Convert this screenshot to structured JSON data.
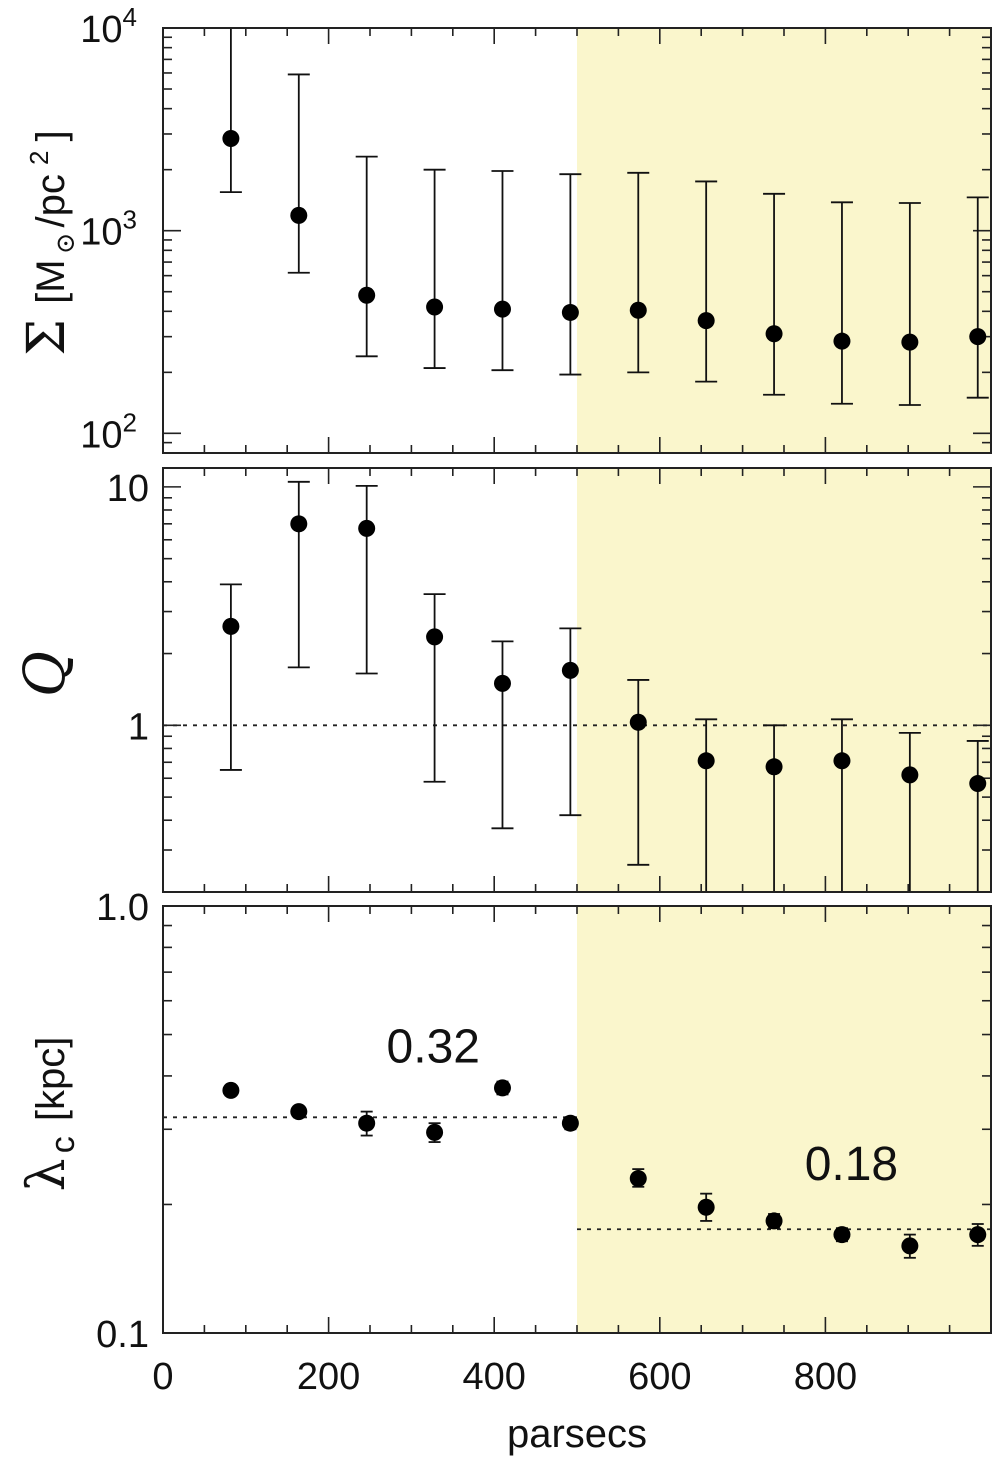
{
  "chart_data": [
    {
      "type": "scatter",
      "panel": "surface-density",
      "ylabel_symbol": "Σ",
      "ylabel_unit_open": "[M",
      "ylabel_unit_sub": "⊙",
      "ylabel_unit_mid": "/pc",
      "ylabel_unit_sup": "2",
      "ylabel_unit_close": "]",
      "yscale": "log",
      "ylim": [
        80,
        10000
      ],
      "xlim": [
        0,
        1000
      ],
      "y_ticks": [
        {
          "value": 100,
          "base": "10",
          "exp": "2"
        },
        {
          "value": 1000,
          "base": "10",
          "exp": "3"
        },
        {
          "value": 10000,
          "base": "10",
          "exp": "4"
        }
      ],
      "shaded_region": {
        "x_from": 500,
        "x_to": 1000,
        "color": "#faf6cc"
      },
      "reference_lines": [],
      "points": [
        {
          "x": 82,
          "y": 2850,
          "lo": 1550,
          "hi": 10000
        },
        {
          "x": 164,
          "y": 1190,
          "lo": 620,
          "hi": 5900
        },
        {
          "x": 246,
          "y": 480,
          "lo": 240,
          "hi": 2320
        },
        {
          "x": 328,
          "y": 420,
          "lo": 210,
          "hi": 2000
        },
        {
          "x": 410,
          "y": 410,
          "lo": 205,
          "hi": 1970
        },
        {
          "x": 492,
          "y": 395,
          "lo": 195,
          "hi": 1900
        },
        {
          "x": 574,
          "y": 405,
          "lo": 200,
          "hi": 1930
        },
        {
          "x": 656,
          "y": 360,
          "lo": 180,
          "hi": 1750
        },
        {
          "x": 738,
          "y": 310,
          "lo": 155,
          "hi": 1520
        },
        {
          "x": 820,
          "y": 285,
          "lo": 140,
          "hi": 1380
        },
        {
          "x": 902,
          "y": 282,
          "lo": 138,
          "hi": 1370
        },
        {
          "x": 984,
          "y": 300,
          "lo": 150,
          "hi": 1460
        }
      ]
    },
    {
      "type": "scatter",
      "panel": "toomre-q",
      "ylabel_symbol": "Q",
      "yscale": "log",
      "ylim": [
        0.2,
        12
      ],
      "xlim": [
        0,
        1000
      ],
      "y_ticks": [
        {
          "value": 1,
          "label": "1"
        },
        {
          "value": 10,
          "label": "10"
        }
      ],
      "shaded_region": {
        "x_from": 500,
        "x_to": 1000,
        "color": "#faf6cc"
      },
      "reference_lines": [
        {
          "x_from": 0,
          "x_to": 1000,
          "y": 1
        }
      ],
      "points": [
        {
          "x": 82,
          "y": 2.6,
          "lo": 0.65,
          "hi": 3.9
        },
        {
          "x": 164,
          "y": 7.0,
          "lo": 1.75,
          "hi": 10.5
        },
        {
          "x": 246,
          "y": 6.7,
          "lo": 1.65,
          "hi": 10.1
        },
        {
          "x": 328,
          "y": 2.35,
          "lo": 0.58,
          "hi": 3.55
        },
        {
          "x": 410,
          "y": 1.5,
          "lo": 0.37,
          "hi": 2.25
        },
        {
          "x": 492,
          "y": 1.7,
          "lo": 0.42,
          "hi": 2.55
        },
        {
          "x": 574,
          "y": 1.03,
          "lo": 0.26,
          "hi": 1.55
        },
        {
          "x": 656,
          "y": 0.71,
          "lo": 0.2,
          "hi": 1.06
        },
        {
          "x": 738,
          "y": 0.67,
          "lo": 0.2,
          "hi": 1.0
        },
        {
          "x": 820,
          "y": 0.71,
          "lo": 0.2,
          "hi": 1.06
        },
        {
          "x": 902,
          "y": 0.62,
          "lo": 0.2,
          "hi": 0.93
        },
        {
          "x": 984,
          "y": 0.57,
          "lo": 0.2,
          "hi": 0.86
        }
      ]
    },
    {
      "type": "scatter",
      "panel": "critical-wavelength",
      "ylabel_symbol": "λ",
      "ylabel_sub": "c",
      "ylabel_unit": "[kpc]",
      "yscale": "log",
      "ylim": [
        0.1,
        1.0
      ],
      "xlim": [
        0,
        1000
      ],
      "y_ticks": [
        {
          "value": 0.1,
          "label": "0.1"
        },
        {
          "value": 1.0,
          "label": "1.0"
        }
      ],
      "shaded_region": {
        "x_from": 500,
        "x_to": 1000,
        "color": "#faf6cc"
      },
      "reference_lines": [
        {
          "x_from": 0,
          "x_to": 500,
          "y": 0.32,
          "label": "0.32",
          "label_x": 270,
          "label_y": 0.43
        },
        {
          "x_from": 500,
          "x_to": 1000,
          "y": 0.175,
          "label": "0.18",
          "label_x": 775,
          "label_y": 0.228
        }
      ],
      "points": [
        {
          "x": 82,
          "y": 0.37,
          "lo": 0.36,
          "hi": 0.38
        },
        {
          "x": 164,
          "y": 0.33,
          "lo": 0.322,
          "hi": 0.338
        },
        {
          "x": 246,
          "y": 0.31,
          "lo": 0.29,
          "hi": 0.33
        },
        {
          "x": 328,
          "y": 0.295,
          "lo": 0.28,
          "hi": 0.31
        },
        {
          "x": 410,
          "y": 0.375,
          "lo": 0.362,
          "hi": 0.388
        },
        {
          "x": 492,
          "y": 0.31,
          "lo": 0.3,
          "hi": 0.32
        },
        {
          "x": 574,
          "y": 0.23,
          "lo": 0.22,
          "hi": 0.242
        },
        {
          "x": 656,
          "y": 0.197,
          "lo": 0.183,
          "hi": 0.212
        },
        {
          "x": 738,
          "y": 0.183,
          "lo": 0.176,
          "hi": 0.19
        },
        {
          "x": 820,
          "y": 0.17,
          "lo": 0.164,
          "hi": 0.176
        },
        {
          "x": 902,
          "y": 0.16,
          "lo": 0.15,
          "hi": 0.17
        },
        {
          "x": 984,
          "y": 0.17,
          "lo": 0.16,
          "hi": 0.18
        }
      ]
    }
  ],
  "x_axis": {
    "label": "parsecs",
    "ticks": [
      {
        "value": 0,
        "label": "0"
      },
      {
        "value": 200,
        "label": "200"
      },
      {
        "value": 400,
        "label": "400"
      },
      {
        "value": 600,
        "label": "600"
      },
      {
        "value": 800,
        "label": "800"
      }
    ]
  }
}
